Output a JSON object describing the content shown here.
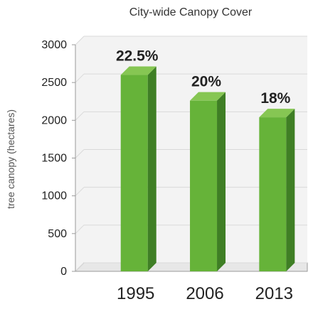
{
  "chart_data": {
    "type": "bar",
    "title": "City-wide Canopy Cover",
    "xlabel": "",
    "ylabel": "tree canopy (hectares)",
    "categories": [
      "1995",
      "2006",
      "2013"
    ],
    "values": [
      2600,
      2260,
      2040
    ],
    "data_labels": [
      "22.5%",
      "20%",
      "18%"
    ],
    "ylim": [
      0,
      3000
    ],
    "yticks": [
      0,
      500,
      1000,
      1500,
      2000,
      2500,
      3000
    ],
    "grid": true,
    "legend": "none",
    "bar_3d": true,
    "colors": {
      "bar_front": "#66b339",
      "bar_side": "#3f7f25",
      "bar_top": "#86c653",
      "grid": "#d9d9d9",
      "wall": "#f3f3f3",
      "axis": "#9a9a9a",
      "text": "#222222"
    }
  }
}
